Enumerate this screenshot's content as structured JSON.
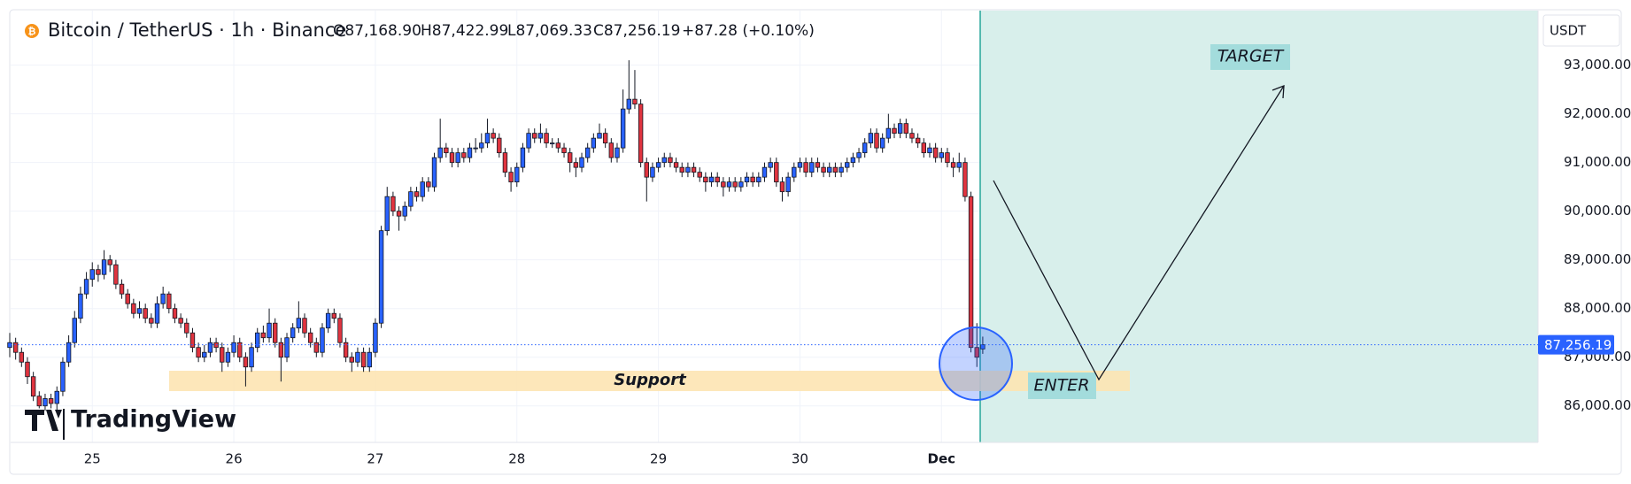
{
  "chart_data": {
    "type": "candlestick",
    "title": "Bitcoin / TetherUS · 1h · Binance",
    "ohlc_labels": [
      "O87,168.90",
      "H87,422.99",
      "L87,069.33",
      "C87,256.19",
      "+87.28 (+0.10%)"
    ],
    "currency": "USDT",
    "watermark": "TradingView",
    "annotations": {
      "support": "Support",
      "enter": "ENTER",
      "target": "TARGET"
    },
    "up_color": "#2962ff",
    "down_color": "#e0343f",
    "last_price": {
      "value": 87256.19,
      "label": "87,256.19"
    },
    "ylim": [
      85250,
      94120
    ],
    "yticks": [
      {
        "value": 86000,
        "label": "86,000.00"
      },
      {
        "value": 87000,
        "label": "87,000.00"
      },
      {
        "value": 88000,
        "label": "88,000.00"
      },
      {
        "value": 89000,
        "label": "89,000.00"
      },
      {
        "value": 90000,
        "label": "90,000.00"
      },
      {
        "value": 91000,
        "label": "91,000.00"
      },
      {
        "value": 92000,
        "label": "92,000.00"
      },
      {
        "value": 93000,
        "label": "93,000.00"
      }
    ],
    "xticks": [
      {
        "value": 14,
        "label": "25"
      },
      {
        "value": 38,
        "label": "26"
      },
      {
        "value": 62,
        "label": "27"
      },
      {
        "value": 86,
        "label": "28"
      },
      {
        "value": 110,
        "label": "29"
      },
      {
        "value": 134,
        "label": "30"
      },
      {
        "value": 158,
        "label": "Dec"
      }
    ],
    "grid": true,
    "candles": [
      [
        87200,
        87500,
        87000,
        87300
      ],
      [
        87300,
        87400,
        86950,
        87100
      ],
      [
        87100,
        87200,
        86800,
        86900
      ],
      [
        86900,
        87000,
        86450,
        86600
      ],
      [
        86600,
        86700,
        86100,
        86200
      ],
      [
        86200,
        86300,
        85950,
        86000
      ],
      [
        86000,
        86250,
        85900,
        86150
      ],
      [
        86150,
        86250,
        85950,
        86050
      ],
      [
        86050,
        86400,
        85900,
        86300
      ],
      [
        86300,
        87000,
        86200,
        86900
      ],
      [
        86900,
        87450,
        86800,
        87300
      ],
      [
        87300,
        87950,
        87200,
        87800
      ],
      [
        87800,
        88450,
        87700,
        88300
      ],
      [
        88300,
        88750,
        88200,
        88600
      ],
      [
        88600,
        88950,
        88450,
        88800
      ],
      [
        88800,
        88900,
        88550,
        88700
      ],
      [
        88700,
        89200,
        88600,
        89000
      ],
      [
        89000,
        89100,
        88750,
        88900
      ],
      [
        88900,
        89000,
        88400,
        88500
      ],
      [
        88500,
        88600,
        88200,
        88300
      ],
      [
        88300,
        88400,
        88000,
        88100
      ],
      [
        88100,
        88200,
        87800,
        87900
      ],
      [
        87900,
        88150,
        87800,
        88000
      ],
      [
        88000,
        88100,
        87700,
        87800
      ],
      [
        87800,
        87900,
        87600,
        87700
      ],
      [
        87700,
        88250,
        87600,
        88100
      ],
      [
        88100,
        88450,
        88000,
        88300
      ],
      [
        88300,
        88350,
        87900,
        88000
      ],
      [
        88000,
        88100,
        87700,
        87800
      ],
      [
        87800,
        87900,
        87600,
        87700
      ],
      [
        87700,
        87800,
        87400,
        87500
      ],
      [
        87500,
        87600,
        87100,
        87200
      ],
      [
        87200,
        87300,
        86900,
        87000
      ],
      [
        87000,
        87250,
        86900,
        87100
      ],
      [
        87100,
        87400,
        87000,
        87300
      ],
      [
        87300,
        87400,
        87100,
        87200
      ],
      [
        87200,
        87300,
        86700,
        86900
      ],
      [
        86900,
        87200,
        86800,
        87100
      ],
      [
        87100,
        87450,
        87000,
        87300
      ],
      [
        87300,
        87400,
        86900,
        87000
      ],
      [
        87000,
        87100,
        86400,
        86800
      ],
      [
        86800,
        87300,
        86700,
        87200
      ],
      [
        87200,
        87600,
        87100,
        87500
      ],
      [
        87500,
        87650,
        87300,
        87400
      ],
      [
        87400,
        88000,
        87300,
        87700
      ],
      [
        87700,
        87800,
        87200,
        87300
      ],
      [
        87300,
        87400,
        86500,
        87000
      ],
      [
        87000,
        87500,
        86900,
        87400
      ],
      [
        87400,
        87700,
        87300,
        87600
      ],
      [
        87600,
        88150,
        87500,
        87800
      ],
      [
        87800,
        87900,
        87400,
        87500
      ],
      [
        87500,
        87600,
        87200,
        87300
      ],
      [
        87300,
        87400,
        87000,
        87100
      ],
      [
        87100,
        87700,
        87000,
        87600
      ],
      [
        87600,
        88000,
        87500,
        87900
      ],
      [
        87900,
        88000,
        87700,
        87800
      ],
      [
        87800,
        87900,
        87200,
        87300
      ],
      [
        87300,
        87400,
        86900,
        87000
      ],
      [
        87000,
        87100,
        86700,
        86900
      ],
      [
        86900,
        87200,
        86800,
        87100
      ],
      [
        87100,
        87200,
        86700,
        86800
      ],
      [
        86800,
        87200,
        86700,
        87100
      ],
      [
        87100,
        87800,
        87000,
        87700
      ],
      [
        87700,
        89700,
        87600,
        89600
      ],
      [
        89600,
        90500,
        89500,
        90300
      ],
      [
        90300,
        90400,
        89900,
        90000
      ],
      [
        90000,
        90100,
        89600,
        89900
      ],
      [
        89900,
        90200,
        89800,
        90100
      ],
      [
        90100,
        90500,
        90000,
        90400
      ],
      [
        90400,
        90500,
        90200,
        90300
      ],
      [
        90300,
        90700,
        90200,
        90600
      ],
      [
        90600,
        90700,
        90400,
        90500
      ],
      [
        90500,
        91200,
        90400,
        91100
      ],
      [
        91100,
        91900,
        91000,
        91300
      ],
      [
        91300,
        91400,
        91100,
        91200
      ],
      [
        91200,
        91300,
        90900,
        91000
      ],
      [
        91000,
        91300,
        90900,
        91200
      ],
      [
        91200,
        91300,
        91000,
        91100
      ],
      [
        91100,
        91400,
        91000,
        91300
      ],
      [
        91300,
        91500,
        91200,
        91300
      ],
      [
        91300,
        91600,
        91200,
        91400
      ],
      [
        91400,
        91900,
        91300,
        91600
      ],
      [
        91600,
        91700,
        91400,
        91500
      ],
      [
        91500,
        91600,
        91100,
        91200
      ],
      [
        91200,
        91300,
        90700,
        90800
      ],
      [
        90800,
        90900,
        90400,
        90600
      ],
      [
        90600,
        91000,
        90500,
        90900
      ],
      [
        90900,
        91400,
        90800,
        91300
      ],
      [
        91300,
        91700,
        91200,
        91600
      ],
      [
        91600,
        91700,
        91400,
        91500
      ],
      [
        91500,
        91800,
        91400,
        91600
      ],
      [
        91600,
        91700,
        91300,
        91400
      ],
      [
        91400,
        91500,
        91300,
        91400
      ],
      [
        91400,
        91500,
        91200,
        91300
      ],
      [
        91300,
        91400,
        91100,
        91200
      ],
      [
        91200,
        91300,
        90800,
        91000
      ],
      [
        91000,
        91100,
        90700,
        90900
      ],
      [
        90900,
        91200,
        90800,
        91100
      ],
      [
        91100,
        91400,
        91000,
        91300
      ],
      [
        91300,
        91600,
        91200,
        91500
      ],
      [
        91500,
        91800,
        91500,
        91600
      ],
      [
        91600,
        91700,
        91300,
        91400
      ],
      [
        91400,
        91500,
        91000,
        91100
      ],
      [
        91100,
        91400,
        91000,
        91300
      ],
      [
        91300,
        92500,
        91200,
        92100
      ],
      [
        92100,
        93100,
        92000,
        92300
      ],
      [
        92300,
        92900,
        92100,
        92200
      ],
      [
        92200,
        92300,
        90900,
        91000
      ],
      [
        91000,
        91100,
        90200,
        90700
      ],
      [
        90700,
        91000,
        90600,
        90900
      ],
      [
        90900,
        91100,
        90800,
        91000
      ],
      [
        91000,
        91200,
        90900,
        91100
      ],
      [
        91100,
        91200,
        90900,
        91000
      ],
      [
        91000,
        91100,
        90800,
        90900
      ],
      [
        90900,
        91000,
        90700,
        90800
      ],
      [
        90800,
        91000,
        90700,
        90900
      ],
      [
        90900,
        91000,
        90700,
        90800
      ],
      [
        90800,
        90900,
        90600,
        90700
      ],
      [
        90700,
        90800,
        90400,
        90600
      ],
      [
        90600,
        90800,
        90500,
        90700
      ],
      [
        90700,
        90800,
        90500,
        90600
      ],
      [
        90600,
        90700,
        90300,
        90500
      ],
      [
        90500,
        90700,
        90400,
        90600
      ],
      [
        90600,
        90700,
        90400,
        90500
      ],
      [
        90500,
        90700,
        90400,
        90600
      ],
      [
        90600,
        90800,
        90500,
        90700
      ],
      [
        90700,
        90800,
        90500,
        90600
      ],
      [
        90600,
        90800,
        90500,
        90700
      ],
      [
        90700,
        91000,
        90600,
        90900
      ],
      [
        90900,
        91100,
        90800,
        91000
      ],
      [
        91000,
        91100,
        90500,
        90600
      ],
      [
        90600,
        90700,
        90200,
        90400
      ],
      [
        90400,
        90800,
        90300,
        90700
      ],
      [
        90700,
        91000,
        90600,
        90900
      ],
      [
        90900,
        91100,
        90800,
        91000
      ],
      [
        91000,
        91100,
        90700,
        90800
      ],
      [
        90800,
        91100,
        90700,
        91000
      ],
      [
        91000,
        91100,
        90800,
        90900
      ],
      [
        90900,
        91000,
        90700,
        90800
      ],
      [
        90800,
        91000,
        90700,
        90900
      ],
      [
        90900,
        91000,
        90700,
        90800
      ],
      [
        90800,
        91000,
        90700,
        90900
      ],
      [
        90900,
        91100,
        90800,
        91000
      ],
      [
        91000,
        91200,
        90900,
        91100
      ],
      [
        91100,
        91300,
        91000,
        91200
      ],
      [
        91200,
        91500,
        91100,
        91400
      ],
      [
        91400,
        91700,
        91300,
        91600
      ],
      [
        91600,
        91700,
        91200,
        91300
      ],
      [
        91300,
        91600,
        91200,
        91500
      ],
      [
        91500,
        92000,
        91400,
        91700
      ],
      [
        91700,
        91800,
        91500,
        91600
      ],
      [
        91600,
        91900,
        91500,
        91800
      ],
      [
        91800,
        91900,
        91500,
        91600
      ],
      [
        91600,
        91700,
        91400,
        91500
      ],
      [
        91500,
        91600,
        91300,
        91400
      ],
      [
        91400,
        91500,
        91100,
        91200
      ],
      [
        91200,
        91400,
        91100,
        91300
      ],
      [
        91300,
        91400,
        91000,
        91100
      ],
      [
        91100,
        91300,
        91000,
        91200
      ],
      [
        91200,
        91300,
        90900,
        91000
      ],
      [
        91000,
        91100,
        90700,
        90900
      ],
      [
        90900,
        91200,
        90800,
        91000
      ],
      [
        91000,
        91100,
        90200,
        90300
      ],
      [
        90300,
        90400,
        87100,
        87200
      ],
      [
        87200,
        87700,
        86800,
        87000
      ],
      [
        87168.9,
        87422.99,
        87069.33,
        87256.19
      ]
    ]
  }
}
